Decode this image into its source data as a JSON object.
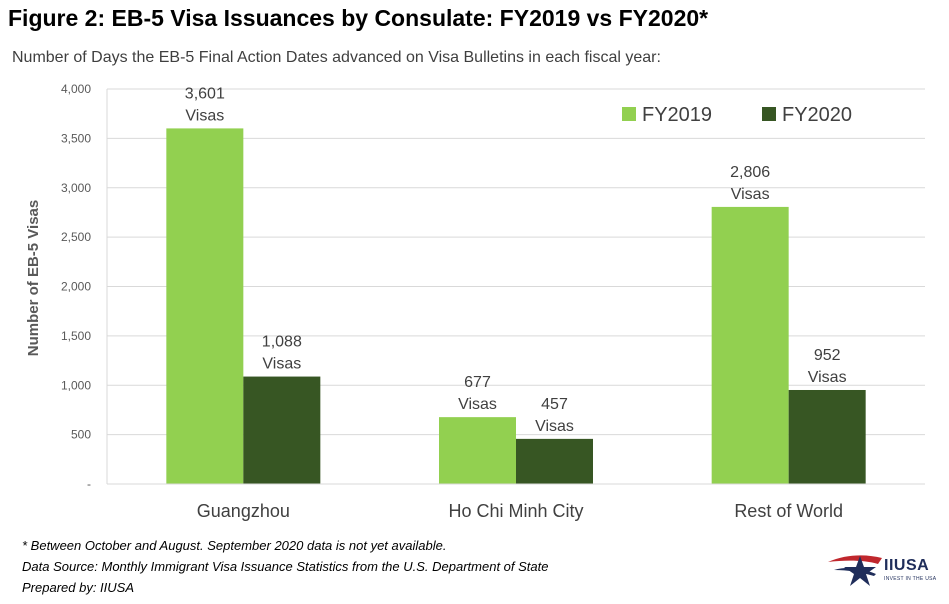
{
  "header": {
    "title": "Figure 2: EB-5 Visa Issuances by Consulate: FY2019 vs FY2020*",
    "subtitle": "Number of Days the EB-5 Final Action Dates advanced on Visa Bulletins in each fiscal year:"
  },
  "chart_data": {
    "type": "bar",
    "categories": [
      "Guangzhou",
      "Ho Chi Minh City",
      "Rest of World"
    ],
    "series": [
      {
        "name": "FY2019",
        "values": [
          3601,
          677,
          2806
        ],
        "color": "#92d050",
        "labels": [
          "3,601",
          "677",
          "2,806"
        ]
      },
      {
        "name": "FY2020",
        "values": [
          1088,
          457,
          952
        ],
        "color": "#375623",
        "labels": [
          "1,088",
          "457",
          "952"
        ]
      }
    ],
    "label_suffix": "Visas",
    "ylabel": "Number of EB-5 Visas",
    "ylim": [
      0,
      4000
    ],
    "yticks": [
      {
        "value": 0,
        "label": "-"
      },
      {
        "value": 500,
        "label": "500"
      },
      {
        "value": 1000,
        "label": "1,000"
      },
      {
        "value": 1500,
        "label": "1,500"
      },
      {
        "value": 2000,
        "label": "2,000"
      },
      {
        "value": 2500,
        "label": "2,500"
      },
      {
        "value": 3000,
        "label": "3,000"
      },
      {
        "value": 3500,
        "label": "3,500"
      },
      {
        "value": 4000,
        "label": "4,000"
      }
    ],
    "grid": true,
    "legend_position": "top-right"
  },
  "footnotes": {
    "note": "* Between October and August. September 2020 data is not yet available.",
    "source": "Data Source: Monthly Immigrant Visa Issuance Statistics from the U.S. Department of State",
    "prepared": "Prepared by: IIUSA"
  },
  "logo": {
    "text": "IIUSA",
    "tagline": "INVEST IN THE USA",
    "colors": {
      "blue": "#1f2d5a",
      "red": "#c0272d"
    }
  }
}
